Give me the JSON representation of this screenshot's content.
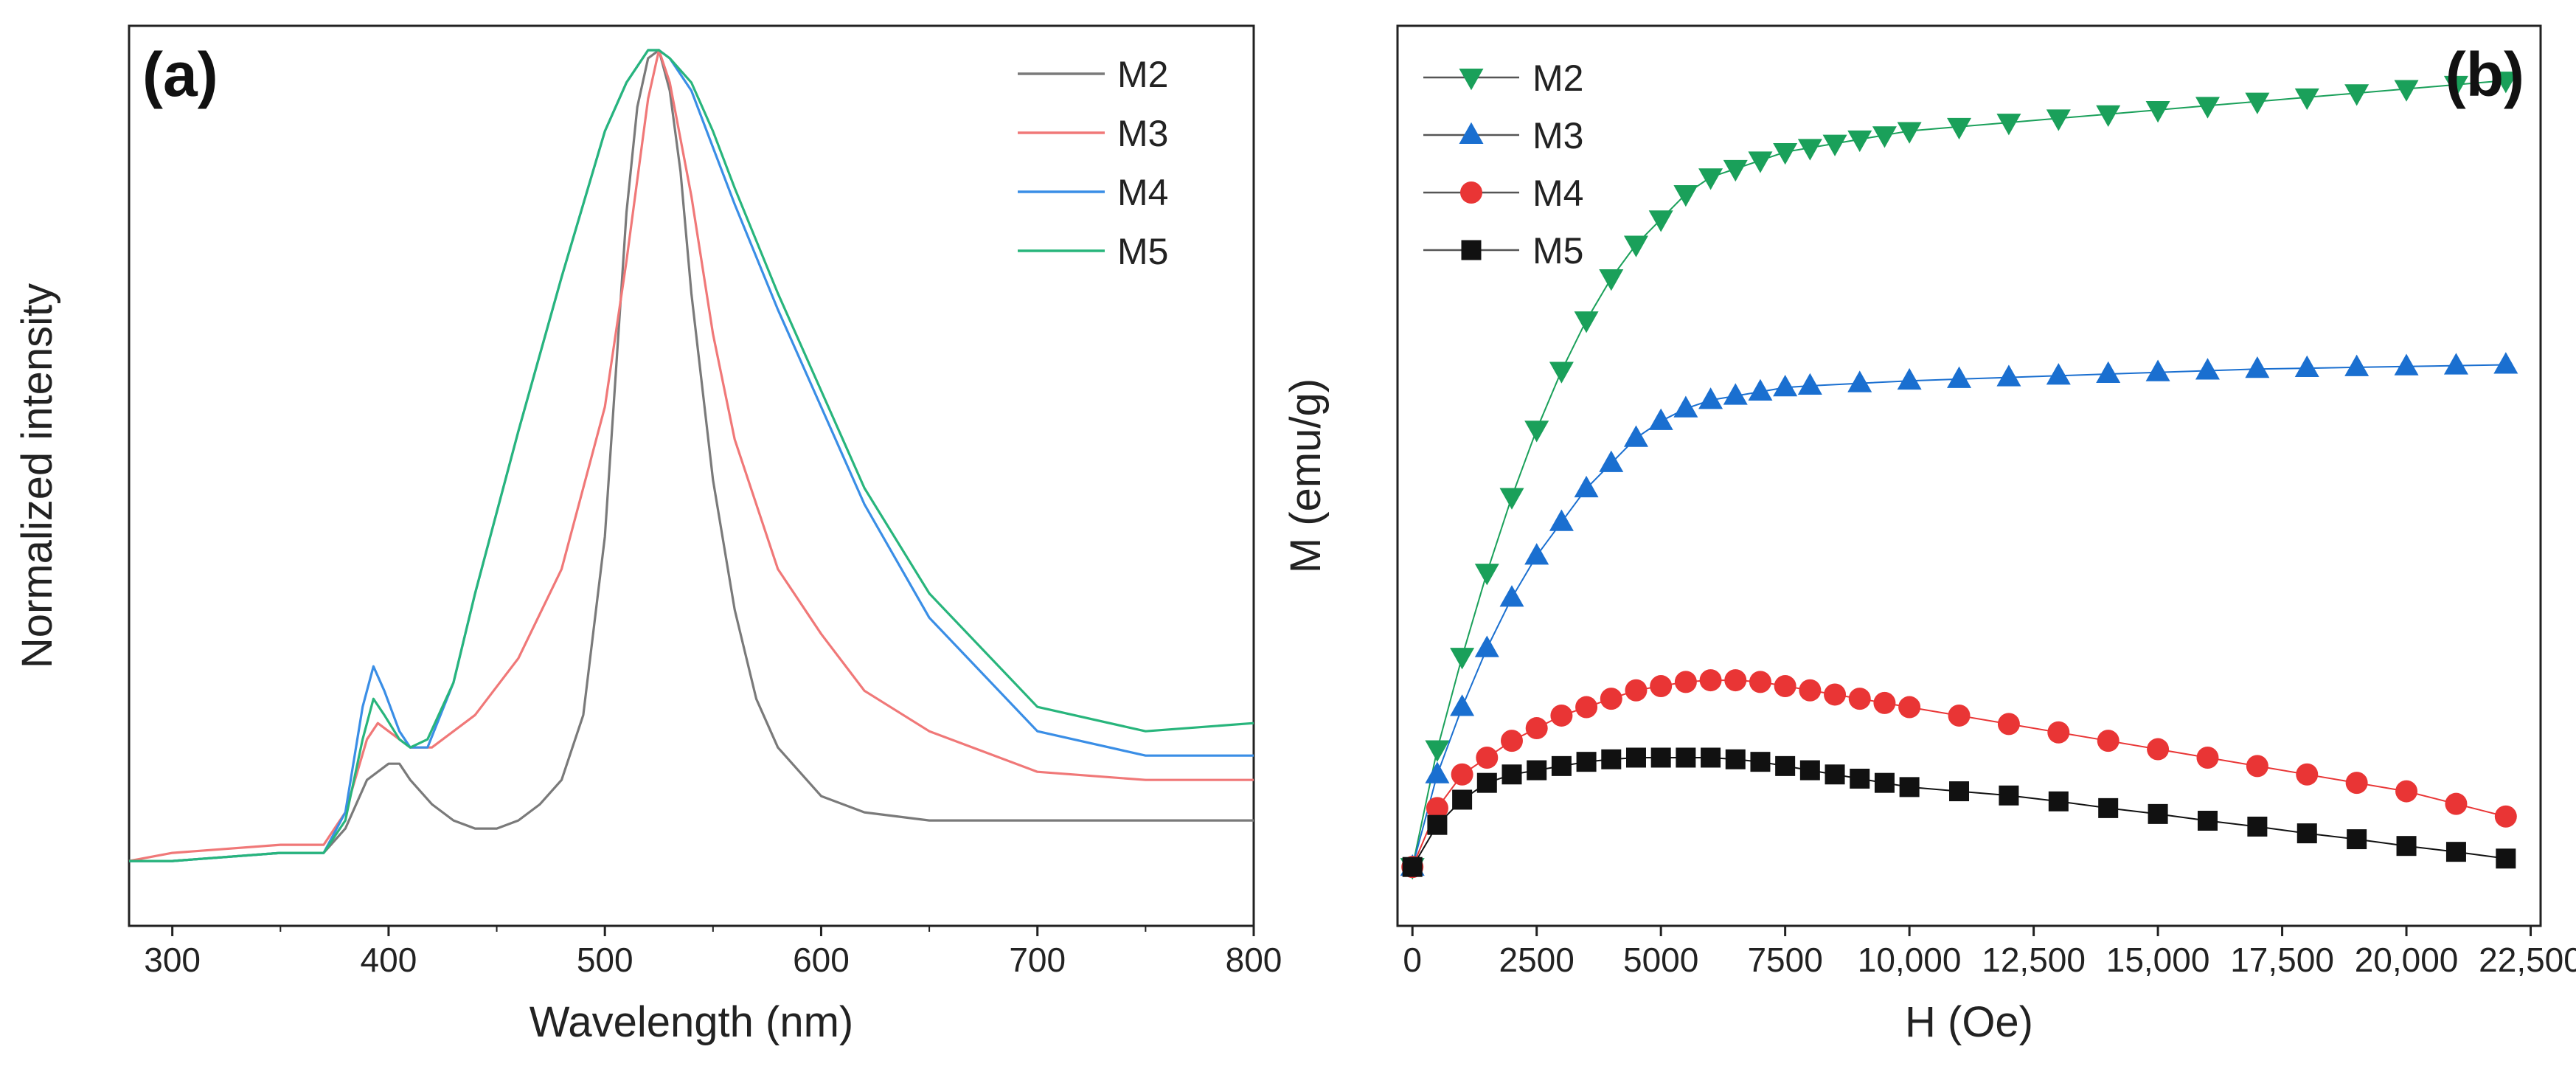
{
  "chart_data": [
    {
      "type": "line",
      "panel_label": "(a)",
      "xlabel": "Wavelength (nm)",
      "ylabel": "Normalized intensity",
      "xlim": [
        280,
        800
      ],
      "ylim": [
        -0.08,
        1.03
      ],
      "x_ticks": [
        300,
        400,
        500,
        600,
        700,
        800
      ],
      "x_tick_labels": [
        "300",
        "400",
        "500",
        "600",
        "700",
        "800"
      ],
      "legend_position": "top-right",
      "series": [
        {
          "name": "M2",
          "color": "#7a7a7a",
          "x": [
            280,
            300,
            350,
            370,
            380,
            390,
            400,
            405,
            410,
            420,
            430,
            440,
            450,
            460,
            470,
            480,
            490,
            500,
            505,
            510,
            515,
            520,
            525,
            530,
            535,
            540,
            550,
            560,
            570,
            580,
            600,
            620,
            650,
            700,
            750,
            800
          ],
          "y": [
            0.0,
            0.0,
            0.01,
            0.01,
            0.04,
            0.1,
            0.12,
            0.12,
            0.1,
            0.07,
            0.05,
            0.04,
            0.04,
            0.05,
            0.07,
            0.1,
            0.18,
            0.4,
            0.6,
            0.8,
            0.93,
            0.99,
            1.0,
            0.95,
            0.85,
            0.7,
            0.47,
            0.31,
            0.2,
            0.14,
            0.08,
            0.06,
            0.05,
            0.05,
            0.05,
            0.05
          ]
        },
        {
          "name": "M3",
          "color": "#f07878",
          "x": [
            280,
            300,
            350,
            370,
            380,
            390,
            395,
            400,
            410,
            420,
            440,
            460,
            480,
            500,
            510,
            520,
            525,
            530,
            540,
            550,
            560,
            580,
            600,
            620,
            650,
            700,
            750,
            800
          ],
          "y": [
            0.0,
            0.01,
            0.02,
            0.02,
            0.06,
            0.15,
            0.17,
            0.16,
            0.14,
            0.14,
            0.18,
            0.25,
            0.36,
            0.56,
            0.74,
            0.94,
            1.0,
            0.96,
            0.82,
            0.65,
            0.52,
            0.36,
            0.28,
            0.21,
            0.16,
            0.11,
            0.1,
            0.1
          ]
        },
        {
          "name": "M4",
          "color": "#3a8ee6",
          "x": [
            280,
            300,
            350,
            370,
            380,
            388,
            393,
            398,
            405,
            410,
            418,
            430,
            440,
            460,
            480,
            500,
            510,
            520,
            525,
            530,
            540,
            550,
            560,
            580,
            600,
            620,
            650,
            700,
            750,
            800
          ],
          "y": [
            0.0,
            0.0,
            0.01,
            0.01,
            0.06,
            0.19,
            0.24,
            0.21,
            0.16,
            0.14,
            0.14,
            0.22,
            0.33,
            0.53,
            0.72,
            0.9,
            0.96,
            1.0,
            1.0,
            0.99,
            0.95,
            0.88,
            0.81,
            0.68,
            0.56,
            0.44,
            0.3,
            0.16,
            0.13,
            0.13
          ]
        },
        {
          "name": "M5",
          "color": "#28b57c",
          "x": [
            280,
            300,
            350,
            370,
            380,
            388,
            393,
            398,
            405,
            410,
            418,
            430,
            440,
            460,
            480,
            500,
            510,
            520,
            525,
            530,
            540,
            550,
            560,
            580,
            600,
            620,
            650,
            700,
            750,
            800
          ],
          "y": [
            0.0,
            0.0,
            0.01,
            0.01,
            0.05,
            0.15,
            0.2,
            0.18,
            0.15,
            0.14,
            0.15,
            0.22,
            0.33,
            0.53,
            0.72,
            0.9,
            0.96,
            1.0,
            1.0,
            0.99,
            0.96,
            0.9,
            0.83,
            0.7,
            0.58,
            0.46,
            0.33,
            0.19,
            0.16,
            0.17
          ]
        }
      ]
    },
    {
      "type": "scatter",
      "panel_label": "(b)",
      "xlabel": "H (Oe)",
      "ylabel": "M (emu/g)",
      "xlim": [
        -300,
        22700
      ],
      "ylim": [
        -0.07,
        1.0
      ],
      "x_ticks": [
        0,
        2500,
        5000,
        7500,
        10000,
        12500,
        15000,
        17500,
        20000,
        22500
      ],
      "x_tick_labels": [
        "0",
        "2500",
        "5000",
        "7500",
        "10,000",
        "12,500",
        "15,000",
        "17,500",
        "20,000",
        "22,500"
      ],
      "legend_position": "top-left",
      "series": [
        {
          "name": "M2",
          "color": "#1aa05a",
          "marker": "triangle-down",
          "x": [
            0,
            500,
            1000,
            1500,
            2000,
            2500,
            3000,
            3500,
            4000,
            4500,
            5000,
            5500,
            6000,
            6500,
            7000,
            7500,
            8000,
            8500,
            9000,
            9500,
            10000,
            11000,
            12000,
            13000,
            14000,
            15000,
            16000,
            17000,
            18000,
            19000,
            20000,
            21000,
            22000
          ],
          "y": [
            0.0,
            0.14,
            0.25,
            0.35,
            0.44,
            0.52,
            0.59,
            0.65,
            0.7,
            0.74,
            0.77,
            0.8,
            0.82,
            0.83,
            0.84,
            0.85,
            0.855,
            0.86,
            0.865,
            0.87,
            0.875,
            0.88,
            0.885,
            0.89,
            0.895,
            0.9,
            0.905,
            0.91,
            0.915,
            0.92,
            0.925,
            0.93,
            0.935
          ]
        },
        {
          "name": "M3",
          "color": "#1a6fd0",
          "marker": "triangle-up",
          "x": [
            0,
            500,
            1000,
            1500,
            2000,
            2500,
            3000,
            3500,
            4000,
            4500,
            5000,
            5500,
            6000,
            6500,
            7000,
            7500,
            8000,
            9000,
            10000,
            11000,
            12000,
            13000,
            14000,
            15000,
            16000,
            17000,
            18000,
            19000,
            20000,
            21000,
            22000
          ],
          "y": [
            0.0,
            0.11,
            0.19,
            0.26,
            0.32,
            0.37,
            0.41,
            0.45,
            0.48,
            0.51,
            0.53,
            0.545,
            0.555,
            0.56,
            0.565,
            0.57,
            0.572,
            0.575,
            0.578,
            0.58,
            0.582,
            0.584,
            0.586,
            0.588,
            0.59,
            0.592,
            0.593,
            0.594,
            0.595,
            0.596,
            0.597
          ]
        },
        {
          "name": "M4",
          "color": "#e93535",
          "marker": "circle",
          "x": [
            0,
            500,
            1000,
            1500,
            2000,
            2500,
            3000,
            3500,
            4000,
            4500,
            5000,
            5500,
            6000,
            6500,
            7000,
            7500,
            8000,
            8500,
            9000,
            9500,
            10000,
            11000,
            12000,
            13000,
            14000,
            15000,
            16000,
            17000,
            18000,
            19000,
            20000,
            21000,
            22000
          ],
          "y": [
            0.0,
            0.07,
            0.11,
            0.13,
            0.15,
            0.165,
            0.18,
            0.19,
            0.2,
            0.21,
            0.215,
            0.22,
            0.222,
            0.222,
            0.22,
            0.215,
            0.21,
            0.205,
            0.2,
            0.195,
            0.19,
            0.18,
            0.17,
            0.16,
            0.15,
            0.14,
            0.13,
            0.12,
            0.11,
            0.1,
            0.09,
            0.075,
            0.06
          ]
        },
        {
          "name": "M5",
          "color": "#111111",
          "marker": "square",
          "x": [
            0,
            500,
            1000,
            1500,
            2000,
            2500,
            3000,
            3500,
            4000,
            4500,
            5000,
            5500,
            6000,
            6500,
            7000,
            7500,
            8000,
            8500,
            9000,
            9500,
            10000,
            11000,
            12000,
            13000,
            14000,
            15000,
            16000,
            17000,
            18000,
            19000,
            20000,
            21000,
            22000
          ],
          "y": [
            0.0,
            0.05,
            0.08,
            0.1,
            0.11,
            0.115,
            0.12,
            0.125,
            0.128,
            0.13,
            0.13,
            0.13,
            0.13,
            0.128,
            0.125,
            0.12,
            0.115,
            0.11,
            0.105,
            0.1,
            0.095,
            0.09,
            0.085,
            0.078,
            0.07,
            0.063,
            0.055,
            0.048,
            0.04,
            0.033,
            0.025,
            0.018,
            0.01
          ]
        }
      ]
    }
  ]
}
